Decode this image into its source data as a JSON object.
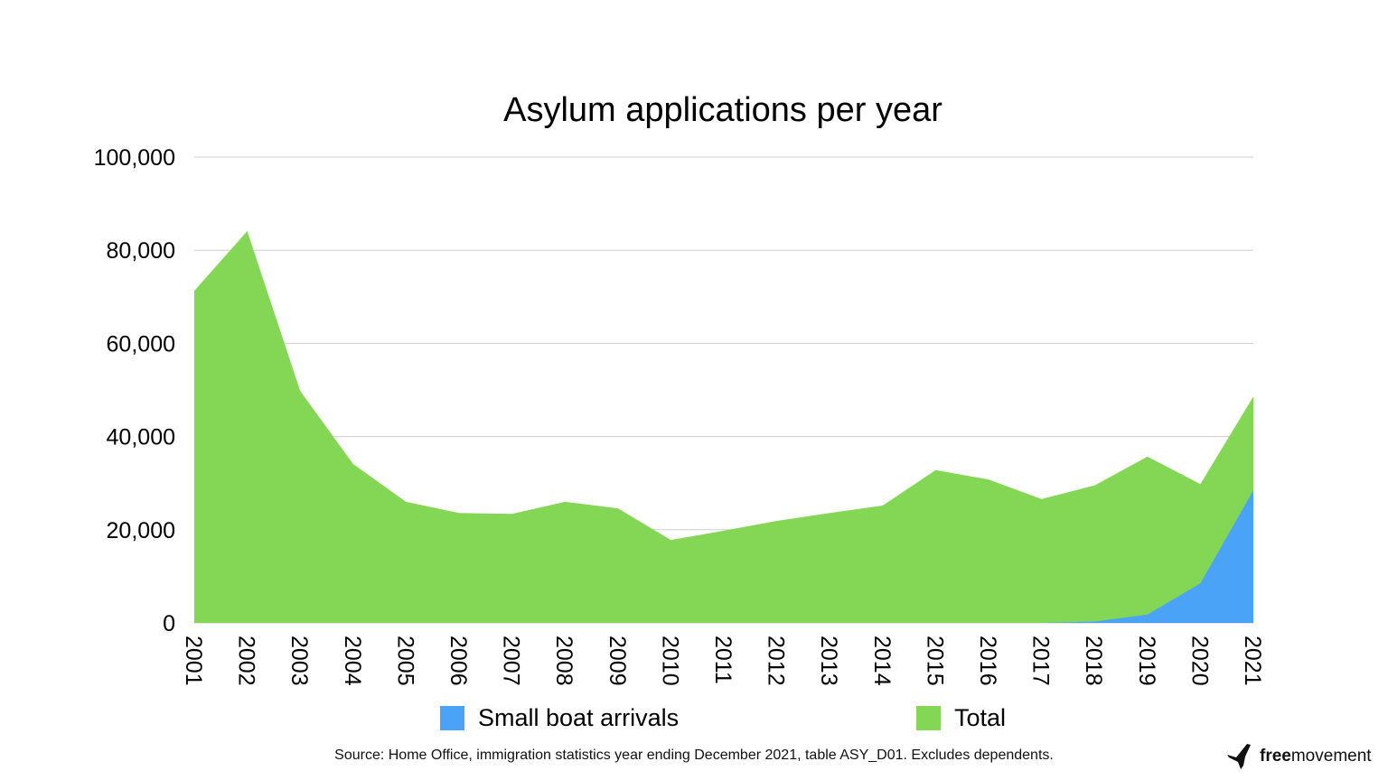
{
  "chart_data": {
    "type": "area",
    "title": "Asylum applications per year",
    "xlabel": "",
    "ylabel": "",
    "categories": [
      "2001",
      "2002",
      "2003",
      "2004",
      "2005",
      "2006",
      "2007",
      "2008",
      "2009",
      "2010",
      "2011",
      "2012",
      "2013",
      "2014",
      "2015",
      "2016",
      "2017",
      "2018",
      "2019",
      "2020",
      "2021"
    ],
    "series": [
      {
        "name": "Total",
        "color": "#84d754",
        "values": [
          71300,
          84100,
          49800,
          34100,
          26000,
          23600,
          23400,
          26000,
          24600,
          17800,
          19800,
          21900,
          23600,
          25200,
          32800,
          30800,
          26600,
          29500,
          35700,
          29800,
          48600
        ]
      },
      {
        "name": "Small boat arrivals",
        "color": "#4ba3f7",
        "values": [
          0,
          0,
          0,
          0,
          0,
          0,
          0,
          0,
          0,
          0,
          0,
          0,
          0,
          0,
          0,
          0,
          0,
          300,
          1800,
          8500,
          28500
        ]
      }
    ],
    "ylim": [
      0,
      100000
    ],
    "yticks": [
      "0",
      "20,000",
      "40,000",
      "60,000",
      "80,000",
      "100,000"
    ],
    "grid": true,
    "legend": "bottom",
    "legend_entries": [
      "Small boat arrivals",
      "Total"
    ]
  },
  "source": "Source: Home Office, immigration statistics year ending December 2021, table ASY_D01. Excludes dependents.",
  "logo": {
    "bold": "free",
    "regular": "movement"
  }
}
